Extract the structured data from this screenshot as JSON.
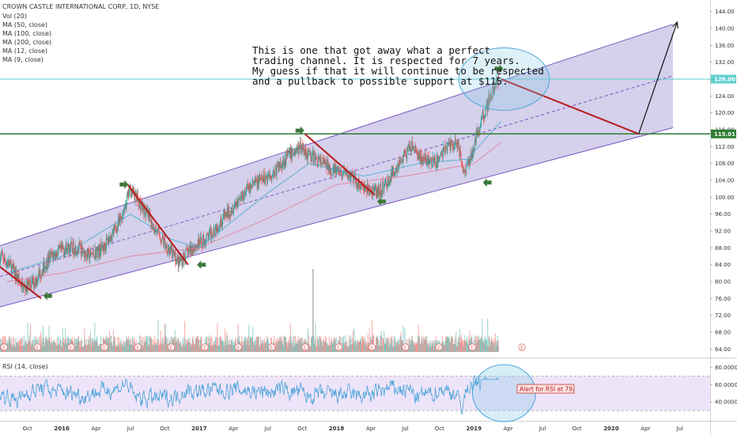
{
  "header": {
    "title": "CROWN CASTLE INTERNATIONAL CORP, 1D, NYSE",
    "indicators": [
      "Vol (20)",
      "MA (50, close)",
      "MA (100, close)",
      "MA (200, close)",
      "MA (12, close)",
      "MA (9, close)"
    ]
  },
  "colors": {
    "channel_fill": "#9a8fd0",
    "channel_line": "#7e57c2",
    "up_candle": "#26a69a",
    "down_candle": "#ef5350",
    "ma_fast": "#2ba7c9",
    "ma_slow": "#e5728d",
    "support_line": "#2e7d32",
    "resistance_level": "#5fcfcf",
    "trend_lines": "#b71c1c",
    "arrows": "#3c7a3c",
    "rsi_line": "#4aa3d9",
    "rsi_band": "#e7d9f7"
  },
  "annotation": {
    "lines": [
      "This is one that got away what a perfect",
      "trading channel. It is respected for 7 years.",
      "My guess if that it will continue to be respected",
      "and a pullback to possible support at $115."
    ]
  },
  "rsi": {
    "label": "RSI (14, close)",
    "alert": "Alert for RSI at 79.",
    "ticks": [
      "80.0000",
      "60.0000",
      "40.0000"
    ]
  },
  "chart_data": {
    "type": "candlestick",
    "title": "CROWN CASTLE INTERNATIONAL CORP, 1D, NYSE",
    "y_axis": {
      "ticks": [
        64,
        68,
        72,
        76,
        80,
        84,
        88,
        92,
        96,
        100,
        104,
        108,
        112,
        116,
        120,
        124,
        128,
        132,
        136,
        140,
        144
      ],
      "tick_labels": [
        "64.00",
        "68.00",
        "72.00",
        "76.00",
        "80.00",
        "84.00",
        "88.00",
        "92.00",
        "96.00",
        "100.00",
        "104.00",
        "108.00",
        "112.00",
        "116.00",
        "120.00",
        "124.00",
        "128.00",
        "132.00",
        "136.00",
        "140.00",
        "144.00"
      ],
      "range": [
        62,
        146
      ]
    },
    "x_axis": {
      "tick_labels": [
        "Oct",
        "2016",
        "Apr",
        "Jul",
        "Oct",
        "2017",
        "Apr",
        "Jul",
        "Oct",
        "2018",
        "Apr",
        "Jul",
        "Oct",
        "2019",
        "Apr",
        "Jul",
        "Oct",
        "2020",
        "Apr",
        "Jul"
      ],
      "tick_t": [
        2015.75,
        2016.0,
        2016.25,
        2016.5,
        2016.75,
        2017.0,
        2017.25,
        2017.5,
        2017.75,
        2018.0,
        2018.25,
        2018.5,
        2018.75,
        2019.0,
        2019.25,
        2019.5,
        2019.75,
        2020.0,
        2020.25,
        2020.5
      ],
      "range": [
        2015.55,
        2020.72
      ]
    },
    "price_labels": {
      "resistance": "128.00",
      "support": "115.01"
    },
    "levels": {
      "resistance": 128.0,
      "support": 115.01
    },
    "price_path": [
      [
        2015.55,
        86
      ],
      [
        2015.62,
        84
      ],
      [
        2015.72,
        78.5
      ],
      [
        2015.8,
        80
      ],
      [
        2015.92,
        86
      ],
      [
        2016.03,
        88
      ],
      [
        2016.12,
        88
      ],
      [
        2016.2,
        86
      ],
      [
        2016.3,
        88
      ],
      [
        2016.42,
        94
      ],
      [
        2016.5,
        102
      ],
      [
        2016.58,
        98
      ],
      [
        2016.67,
        93
      ],
      [
        2016.75,
        89
      ],
      [
        2016.85,
        84.5
      ],
      [
        2016.95,
        88
      ],
      [
        2017.05,
        90
      ],
      [
        2017.15,
        94
      ],
      [
        2017.25,
        98
      ],
      [
        2017.35,
        102
      ],
      [
        2017.45,
        104
      ],
      [
        2017.55,
        106
      ],
      [
        2017.65,
        110
      ],
      [
        2017.75,
        112
      ],
      [
        2017.8,
        110
      ],
      [
        2017.9,
        108
      ],
      [
        2018.0,
        106
      ],
      [
        2018.1,
        105
      ],
      [
        2018.2,
        102
      ],
      [
        2018.3,
        101
      ],
      [
        2018.38,
        104
      ],
      [
        2018.45,
        108
      ],
      [
        2018.55,
        112
      ],
      [
        2018.62,
        109
      ],
      [
        2018.72,
        108
      ],
      [
        2018.8,
        112
      ],
      [
        2018.88,
        113
      ],
      [
        2018.93,
        106
      ],
      [
        2018.98,
        110
      ],
      [
        2019.05,
        118
      ],
      [
        2019.12,
        124
      ],
      [
        2019.18,
        128
      ]
    ],
    "channel": {
      "upper": [
        [
          2015.55,
          88.5
        ],
        [
          2020.45,
          141
        ]
      ],
      "lower": [
        [
          2015.55,
          74
        ],
        [
          2020.45,
          116.5
        ]
      ],
      "mid": [
        [
          2015.55,
          81.2
        ],
        [
          2020.45,
          128.8
        ]
      ],
      "shaded_until": 2020.45
    },
    "moving_averages": [
      {
        "name": "MA (200, close)",
        "points": [
          [
            2015.6,
            80
          ],
          [
            2016.0,
            82
          ],
          [
            2016.5,
            86
          ],
          [
            2017.0,
            88
          ],
          [
            2017.5,
            95
          ],
          [
            2018.0,
            103
          ],
          [
            2018.5,
            105
          ],
          [
            2019.0,
            108
          ],
          [
            2019.2,
            113
          ]
        ]
      },
      {
        "name": "MA (50, close)",
        "points": [
          [
            2015.6,
            82
          ],
          [
            2016.0,
            86
          ],
          [
            2016.5,
            96
          ],
          [
            2016.8,
            90
          ],
          [
            2017.0,
            88
          ],
          [
            2017.5,
            101
          ],
          [
            2017.8,
            108
          ],
          [
            2018.2,
            105
          ],
          [
            2018.6,
            108
          ],
          [
            2018.95,
            109
          ],
          [
            2019.2,
            118
          ]
        ]
      }
    ],
    "trend_lines": [
      [
        [
          2015.55,
          83.5
        ],
        [
          2015.85,
          76
        ]
      ],
      [
        [
          2016.48,
          103
        ],
        [
          2016.92,
          84
        ]
      ],
      [
        [
          2017.77,
          115
        ],
        [
          2018.28,
          100.5
        ]
      ],
      [
        [
          2019.2,
          128
        ],
        [
          2020.2,
          115
        ]
      ]
    ],
    "projection_arrow": [
      [
        2020.2,
        115
      ],
      [
        2020.48,
        141.5
      ]
    ],
    "highlight_ellipses": [
      {
        "center": [
          2019.22,
          128
        ],
        "radius_t": 0.33,
        "radius_v": 7.4
      }
    ],
    "arrow_markers": [
      {
        "at": [
          2016.45,
          103
        ],
        "direction": "right"
      },
      {
        "at": [
          2015.9,
          76.6
        ],
        "direction": "left"
      },
      {
        "at": [
          2017.02,
          84
        ],
        "direction": "left"
      },
      {
        "at": [
          2017.73,
          115.8
        ],
        "direction": "right"
      },
      {
        "at": [
          2018.33,
          99
        ],
        "direction": "left"
      },
      {
        "at": [
          2019.1,
          103.5
        ],
        "direction": "left"
      },
      {
        "at": [
          2019.18,
          130.5
        ],
        "direction": "right"
      }
    ],
    "volume": {
      "ylim": [
        0,
        100
      ],
      "earnings_marker": "E",
      "spike_t": 2017.83
    },
    "rsi": {
      "ylim": [
        20,
        88
      ],
      "band": [
        30,
        70
      ],
      "levels": [
        80,
        60,
        40
      ]
    }
  }
}
